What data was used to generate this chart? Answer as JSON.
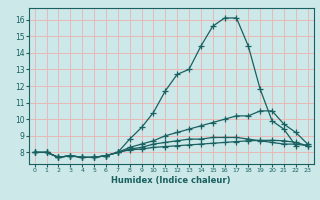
{
  "xlabel": "Humidex (Indice chaleur)",
  "xlim": [
    -0.5,
    23.5
  ],
  "ylim": [
    7.3,
    16.7
  ],
  "yticks": [
    8,
    9,
    10,
    11,
    12,
    13,
    14,
    15,
    16
  ],
  "xticks": [
    0,
    1,
    2,
    3,
    4,
    5,
    6,
    7,
    8,
    9,
    10,
    11,
    12,
    13,
    14,
    15,
    16,
    17,
    18,
    19,
    20,
    21,
    22,
    23
  ],
  "bg_color": "#cce8e8",
  "grid_color": "#e8b8b8",
  "line_color": "#1a6060",
  "lines": [
    {
      "x": [
        0,
        1,
        2,
        3,
        4,
        5,
        6,
        7,
        8,
        9,
        10,
        11,
        12,
        13,
        14,
        15,
        16,
        17,
        18,
        19,
        20,
        21,
        22
      ],
      "y": [
        8.0,
        8.0,
        7.7,
        7.8,
        7.7,
        7.7,
        7.8,
        8.0,
        8.8,
        9.5,
        10.4,
        11.7,
        12.7,
        13.0,
        14.4,
        15.6,
        16.1,
        16.1,
        14.4,
        11.8,
        9.9,
        9.4,
        8.4
      ]
    },
    {
      "x": [
        0,
        1,
        2,
        3,
        4,
        5,
        6,
        7,
        8,
        9,
        10,
        11,
        12,
        13,
        14,
        15,
        16,
        17,
        18,
        19,
        20,
        21,
        22,
        23
      ],
      "y": [
        8.0,
        8.0,
        7.7,
        7.8,
        7.7,
        7.7,
        7.8,
        8.0,
        8.3,
        8.5,
        8.7,
        9.0,
        9.2,
        9.4,
        9.6,
        9.8,
        10.0,
        10.2,
        10.2,
        10.5,
        10.5,
        9.7,
        9.2,
        8.5
      ]
    },
    {
      "x": [
        0,
        1,
        2,
        3,
        4,
        5,
        6,
        7,
        8,
        9,
        10,
        11,
        12,
        13,
        14,
        15,
        16,
        17,
        18,
        19,
        20,
        21,
        22,
        23
      ],
      "y": [
        8.0,
        8.0,
        7.7,
        7.8,
        7.7,
        7.7,
        7.8,
        8.0,
        8.2,
        8.3,
        8.5,
        8.6,
        8.7,
        8.8,
        8.8,
        8.9,
        8.9,
        8.9,
        8.8,
        8.7,
        8.6,
        8.5,
        8.5,
        8.4
      ]
    },
    {
      "x": [
        0,
        1,
        2,
        3,
        4,
        5,
        6,
        7,
        8,
        9,
        10,
        11,
        12,
        13,
        14,
        15,
        16,
        17,
        18,
        19,
        20,
        21,
        22,
        23
      ],
      "y": [
        8.0,
        8.0,
        7.7,
        7.8,
        7.7,
        7.7,
        7.8,
        8.0,
        8.15,
        8.2,
        8.3,
        8.35,
        8.4,
        8.45,
        8.5,
        8.55,
        8.6,
        8.65,
        8.7,
        8.72,
        8.73,
        8.7,
        8.6,
        8.4
      ]
    }
  ]
}
